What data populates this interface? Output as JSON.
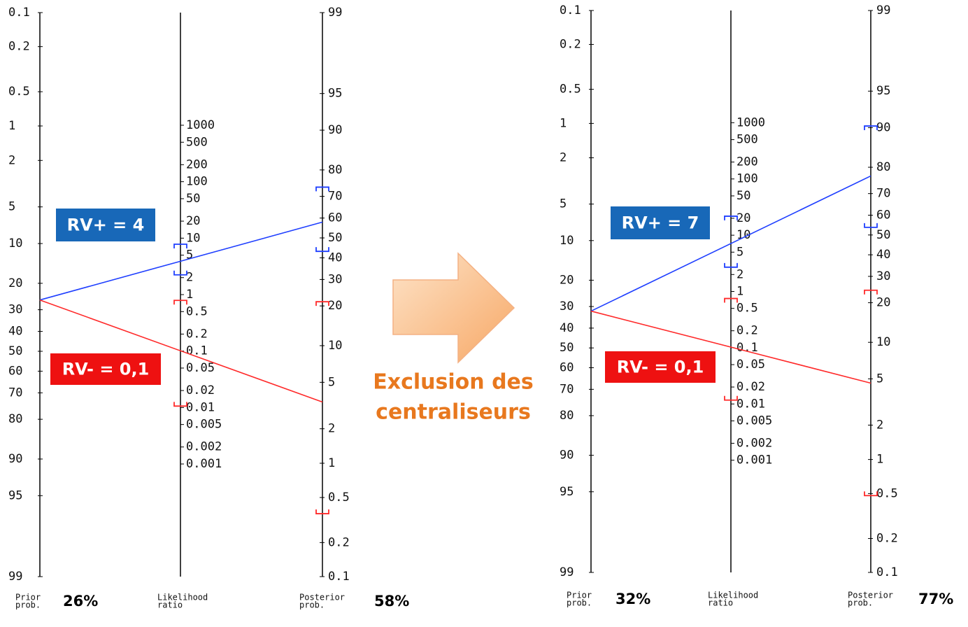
{
  "panels": [
    {
      "prior_axis": {
        "ticks": [
          0.1,
          0.2,
          0.5,
          1,
          2,
          5,
          10,
          20,
          30,
          40,
          50,
          60,
          70,
          80,
          90,
          95,
          99
        ]
      },
      "lr_axis": {
        "ticks": [
          1000,
          500,
          200,
          100,
          50,
          20,
          10,
          5,
          2,
          1,
          0.5,
          0.2,
          0.1,
          0.05,
          0.02,
          0.01,
          0.005,
          0.002,
          0.001
        ]
      },
      "posterior_axis": {
        "ticks": [
          99,
          95,
          90,
          80,
          70,
          60,
          50,
          40,
          30,
          20,
          10,
          5,
          2,
          1,
          0.5,
          0.2,
          0.1
        ]
      },
      "axis_labels": {
        "prior": [
          "Prior",
          "prob."
        ],
        "lr": [
          "Likelihood",
          "ratio"
        ],
        "posterior": [
          "Posterior",
          "prob."
        ]
      },
      "prior": 26,
      "prior_label": "26%",
      "posterior_label": "58%",
      "lines": [
        {
          "label": "RV+ = 4",
          "color": "#1f3fff",
          "box_color": "#1868b8",
          "posterior": 58,
          "lr_ci": [
            2.24,
            7.8
          ],
          "posterior_ci": [
            43.2,
            73.8
          ]
        },
        {
          "label": "RV- = 0,1",
          "color": "#ff2a2a",
          "box_color": "#ee1111",
          "posterior": 3.4,
          "lr_ci": [
            0.0106,
            0.79
          ],
          "posterior_ci": [
            0.36,
            21.4
          ]
        }
      ]
    },
    {
      "prior_axis": {
        "ticks": [
          0.1,
          0.2,
          0.5,
          1,
          2,
          5,
          10,
          20,
          30,
          40,
          50,
          60,
          70,
          80,
          90,
          95,
          99
        ]
      },
      "lr_axis": {
        "ticks": [
          1000,
          500,
          200,
          100,
          50,
          20,
          10,
          5,
          2,
          1,
          0.5,
          0.2,
          0.1,
          0.05,
          0.02,
          0.01,
          0.005,
          0.002,
          0.001
        ]
      },
      "posterior_axis": {
        "ticks": [
          99,
          95,
          90,
          80,
          70,
          60,
          50,
          40,
          30,
          20,
          10,
          5,
          2,
          1,
          0.5,
          0.2,
          0.1
        ]
      },
      "axis_labels": {
        "prior": [
          "Prior",
          "prob."
        ],
        "lr": [
          "Likelihood",
          "ratio"
        ],
        "posterior": [
          "Posterior",
          "prob."
        ]
      },
      "prior": 32,
      "prior_label": "32%",
      "posterior_label": "77%",
      "lines": [
        {
          "label": "RV+ = 7",
          "color": "#1f3fff",
          "box_color": "#1868b8",
          "posterior": 77,
          "lr_ci": [
            2.7,
            21.8
          ],
          "posterior_ci": [
            53.9,
            90.3
          ]
        },
        {
          "label": "RV- = 0,1",
          "color": "#ff2a2a",
          "box_color": "#ee1111",
          "posterior": 4.6,
          "lr_ci": [
            0.0117,
            0.75
          ],
          "posterior_ci": [
            0.48,
            24.4
          ]
        }
      ]
    }
  ],
  "arrow": {
    "text": [
      "Exclusion des",
      "centraliseurs"
    ]
  }
}
